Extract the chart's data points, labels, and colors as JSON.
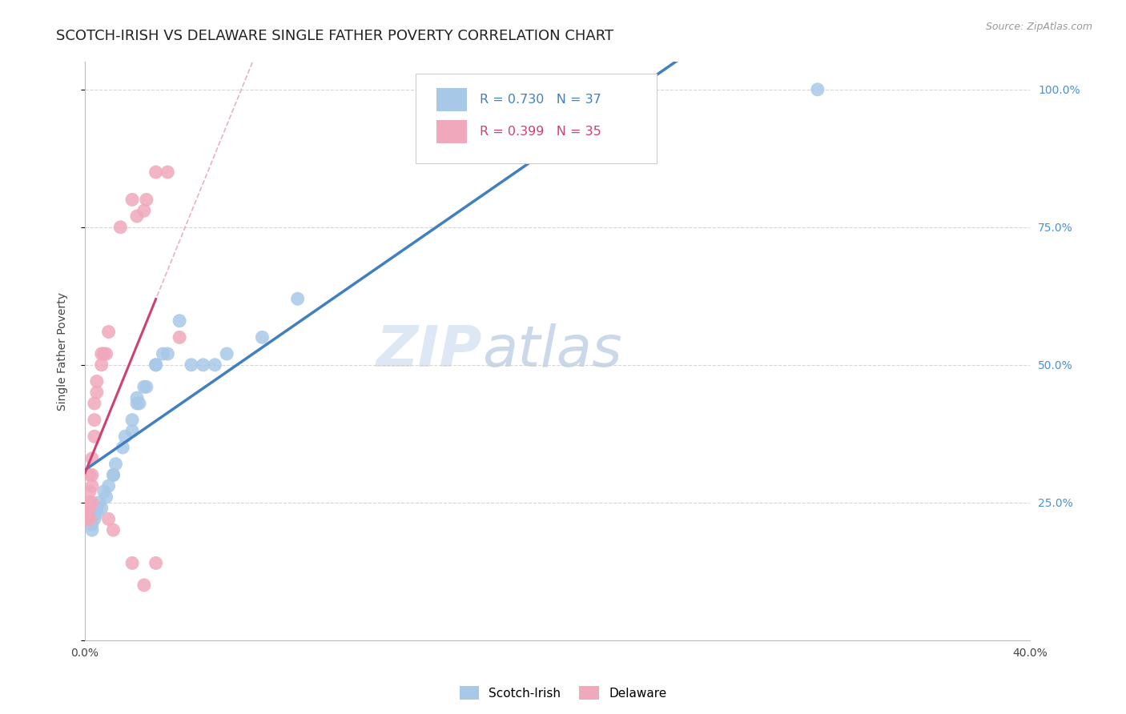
{
  "title": "SCOTCH-IRISH VS DELAWARE SINGLE FATHER POVERTY CORRELATION CHART",
  "source": "Source: ZipAtlas.com",
  "ylabel": "Single Father Poverty",
  "legend_blue_label": "Scotch-Irish",
  "legend_pink_label": "Delaware",
  "legend_blue_r": "R = 0.730",
  "legend_blue_n": "N = 37",
  "legend_pink_r": "R = 0.399",
  "legend_pink_n": "N = 35",
  "watermark_zip": "ZIP",
  "watermark_atlas": "atlas",
  "blue_color": "#a8c8e8",
  "pink_color": "#f0a8bc",
  "blue_line_color": "#4080c0",
  "pink_line_color": "#d04070",
  "pink_dash_color": "#e090a8",
  "blue_scatter": [
    [
      0.002,
      0.22
    ],
    [
      0.003,
      0.21
    ],
    [
      0.003,
      0.2
    ],
    [
      0.004,
      0.23
    ],
    [
      0.004,
      0.22
    ],
    [
      0.005,
      0.24
    ],
    [
      0.005,
      0.23
    ],
    [
      0.006,
      0.25
    ],
    [
      0.007,
      0.24
    ],
    [
      0.008,
      0.27
    ],
    [
      0.009,
      0.26
    ],
    [
      0.01,
      0.28
    ],
    [
      0.012,
      0.3
    ],
    [
      0.012,
      0.3
    ],
    [
      0.013,
      0.32
    ],
    [
      0.016,
      0.35
    ],
    [
      0.017,
      0.37
    ],
    [
      0.02,
      0.38
    ],
    [
      0.02,
      0.4
    ],
    [
      0.022,
      0.43
    ],
    [
      0.022,
      0.44
    ],
    [
      0.023,
      0.43
    ],
    [
      0.025,
      0.46
    ],
    [
      0.026,
      0.46
    ],
    [
      0.03,
      0.5
    ],
    [
      0.03,
      0.5
    ],
    [
      0.033,
      0.52
    ],
    [
      0.035,
      0.52
    ],
    [
      0.04,
      0.58
    ],
    [
      0.045,
      0.5
    ],
    [
      0.05,
      0.5
    ],
    [
      0.055,
      0.5
    ],
    [
      0.06,
      0.52
    ],
    [
      0.075,
      0.55
    ],
    [
      0.09,
      0.62
    ],
    [
      0.155,
      1.0
    ],
    [
      0.31,
      1.0
    ]
  ],
  "pink_scatter": [
    [
      0.001,
      0.22
    ],
    [
      0.001,
      0.23
    ],
    [
      0.001,
      0.24
    ],
    [
      0.002,
      0.22
    ],
    [
      0.002,
      0.24
    ],
    [
      0.002,
      0.25
    ],
    [
      0.002,
      0.27
    ],
    [
      0.002,
      0.3
    ],
    [
      0.003,
      0.25
    ],
    [
      0.003,
      0.28
    ],
    [
      0.003,
      0.3
    ],
    [
      0.003,
      0.33
    ],
    [
      0.004,
      0.37
    ],
    [
      0.004,
      0.4
    ],
    [
      0.004,
      0.43
    ],
    [
      0.005,
      0.45
    ],
    [
      0.005,
      0.47
    ],
    [
      0.007,
      0.5
    ],
    [
      0.007,
      0.52
    ],
    [
      0.008,
      0.52
    ],
    [
      0.009,
      0.52
    ],
    [
      0.01,
      0.56
    ],
    [
      0.015,
      0.75
    ],
    [
      0.02,
      0.8
    ],
    [
      0.022,
      0.77
    ],
    [
      0.025,
      0.78
    ],
    [
      0.026,
      0.8
    ],
    [
      0.03,
      0.85
    ],
    [
      0.035,
      0.85
    ],
    [
      0.01,
      0.22
    ],
    [
      0.012,
      0.2
    ],
    [
      0.02,
      0.14
    ],
    [
      0.025,
      0.1
    ],
    [
      0.03,
      0.14
    ],
    [
      0.04,
      0.55
    ]
  ],
  "xlim": [
    0.0,
    0.4
  ],
  "ylim": [
    0.0,
    1.05
  ],
  "background_color": "#ffffff",
  "grid_color": "#cccccc",
  "title_fontsize": 13,
  "axis_label_fontsize": 10,
  "tick_fontsize": 10,
  "right_tick_color": "#4a90d9"
}
